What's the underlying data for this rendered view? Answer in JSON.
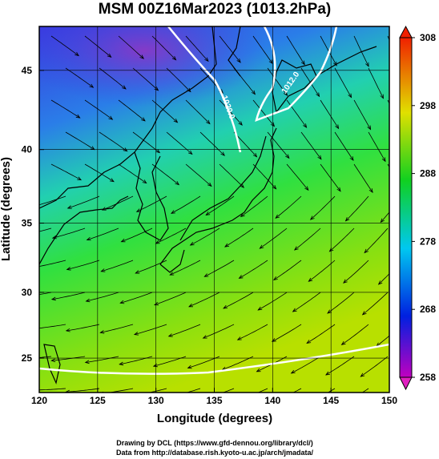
{
  "title": "MSM 00Z16Mar2023 (1013.2hPa)",
  "x_axis": {
    "label": "Longitude (degrees)",
    "lim": [
      120,
      150
    ],
    "ticks": [
      120,
      125,
      130,
      135,
      140,
      145,
      150
    ]
  },
  "y_axis": {
    "label": "Latitude  (degrees)",
    "lim": [
      22.3,
      47.6
    ],
    "ticks": [
      25,
      30,
      35,
      40,
      45
    ],
    "projection": "mercator"
  },
  "colorbar": {
    "lim": [
      258,
      308
    ],
    "ticks": [
      258,
      268,
      278,
      288,
      298,
      308
    ]
  },
  "contour_labels": [
    "1020.0",
    "1012.0"
  ],
  "credits": [
    "Drawing by DCL (https://www.gfd-dennou.org/library/dcl/)",
    "Data from http://database.rish.kyoto-u.ac.jp/arch/jmadata/"
  ]
}
